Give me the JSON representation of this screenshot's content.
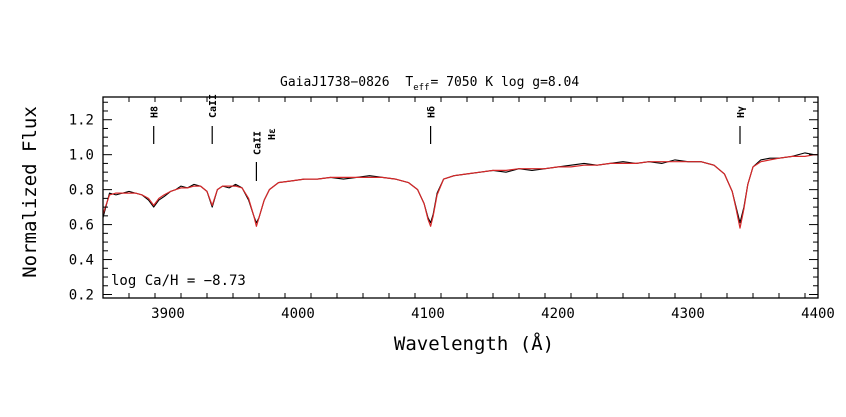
{
  "chart_data": {
    "type": "line",
    "title_parts": {
      "object": "GaiaJ1738−0826",
      "teff_symbol": "T",
      "teff_sub": "eff",
      "teff_rest": "= 7050 K log g=8.04"
    },
    "xlabel": "Wavelength (Å)",
    "ylabel": "Normalized Flux",
    "xlim": [
      3850,
      4400
    ],
    "ylim": [
      0.18,
      1.33
    ],
    "x_ticks_labeled": [
      3900,
      4000,
      4100,
      4200,
      4300,
      4400
    ],
    "y_ticks_labeled": [
      "0.2",
      "0.4",
      "0.6",
      "0.8",
      "1.0",
      "1.2"
    ],
    "annotation": "log Ca/H = −8.73",
    "line_markers": [
      {
        "label": "H8",
        "wavelength": 3889
      },
      {
        "label": "CaII",
        "wavelength": 3934
      },
      {
        "label": "CaII",
        "wavelength": 3968
      },
      {
        "label": "Hε",
        "wavelength": 3970
      },
      {
        "label": "Hδ",
        "wavelength": 4102
      },
      {
        "label": "Hγ",
        "wavelength": 4340
      }
    ],
    "series": [
      {
        "color": "#000000",
        "x": [
          3850,
          3855,
          3860,
          3865,
          3870,
          3875,
          3880,
          3885,
          3889,
          3893,
          3897,
          3902,
          3906,
          3910,
          3915,
          3920,
          3925,
          3930,
          3934,
          3938,
          3942,
          3947,
          3952,
          3957,
          3962,
          3966,
          3968,
          3970,
          3974,
          3978,
          3985,
          3995,
          4005,
          4015,
          4025,
          4035,
          4045,
          4055,
          4065,
          4075,
          4085,
          4092,
          4097,
          4100,
          4102,
          4104,
          4107,
          4112,
          4120,
          4130,
          4140,
          4150,
          4160,
          4170,
          4180,
          4190,
          4200,
          4210,
          4220,
          4230,
          4240,
          4250,
          4260,
          4270,
          4280,
          4290,
          4300,
          4310,
          4320,
          4328,
          4334,
          4337,
          4340,
          4343,
          4346,
          4350,
          4356,
          4363,
          4370,
          4380,
          4390,
          4397,
          4400
        ],
        "y": [
          0.64,
          0.78,
          0.77,
          0.78,
          0.79,
          0.78,
          0.77,
          0.74,
          0.7,
          0.74,
          0.76,
          0.79,
          0.8,
          0.82,
          0.81,
          0.83,
          0.82,
          0.79,
          0.7,
          0.8,
          0.82,
          0.81,
          0.83,
          0.81,
          0.74,
          0.65,
          0.61,
          0.64,
          0.74,
          0.8,
          0.84,
          0.85,
          0.86,
          0.86,
          0.87,
          0.86,
          0.87,
          0.88,
          0.87,
          0.86,
          0.84,
          0.8,
          0.72,
          0.64,
          0.61,
          0.66,
          0.78,
          0.86,
          0.88,
          0.89,
          0.9,
          0.91,
          0.9,
          0.92,
          0.91,
          0.92,
          0.93,
          0.94,
          0.95,
          0.94,
          0.95,
          0.96,
          0.95,
          0.96,
          0.95,
          0.97,
          0.96,
          0.96,
          0.94,
          0.89,
          0.79,
          0.7,
          0.61,
          0.7,
          0.83,
          0.93,
          0.97,
          0.98,
          0.98,
          0.99,
          1.01,
          1.0,
          1.0
        ]
      },
      {
        "color": "#d62728",
        "x": [
          3850,
          3855,
          3860,
          3865,
          3870,
          3875,
          3880,
          3885,
          3889,
          3893,
          3897,
          3902,
          3906,
          3910,
          3915,
          3920,
          3925,
          3930,
          3934,
          3938,
          3942,
          3947,
          3952,
          3957,
          3962,
          3966,
          3968,
          3970,
          3974,
          3978,
          3985,
          3995,
          4005,
          4015,
          4025,
          4035,
          4045,
          4055,
          4065,
          4075,
          4085,
          4092,
          4097,
          4100,
          4102,
          4104,
          4107,
          4112,
          4120,
          4130,
          4140,
          4150,
          4160,
          4170,
          4180,
          4190,
          4200,
          4210,
          4220,
          4230,
          4240,
          4250,
          4260,
          4270,
          4280,
          4290,
          4300,
          4310,
          4320,
          4328,
          4334,
          4337,
          4340,
          4343,
          4346,
          4350,
          4356,
          4363,
          4370,
          4380,
          4390,
          4397,
          4400
        ],
        "y": [
          0.66,
          0.77,
          0.78,
          0.78,
          0.78,
          0.78,
          0.77,
          0.75,
          0.71,
          0.75,
          0.77,
          0.79,
          0.8,
          0.81,
          0.81,
          0.82,
          0.82,
          0.79,
          0.71,
          0.8,
          0.82,
          0.82,
          0.82,
          0.81,
          0.75,
          0.65,
          0.59,
          0.64,
          0.74,
          0.8,
          0.84,
          0.85,
          0.86,
          0.86,
          0.87,
          0.87,
          0.87,
          0.87,
          0.87,
          0.86,
          0.84,
          0.8,
          0.72,
          0.63,
          0.59,
          0.65,
          0.77,
          0.86,
          0.88,
          0.89,
          0.9,
          0.91,
          0.91,
          0.92,
          0.92,
          0.92,
          0.93,
          0.93,
          0.94,
          0.94,
          0.95,
          0.95,
          0.95,
          0.96,
          0.96,
          0.96,
          0.96,
          0.96,
          0.94,
          0.89,
          0.79,
          0.69,
          0.58,
          0.69,
          0.83,
          0.93,
          0.96,
          0.97,
          0.98,
          0.99,
          0.99,
          1.0,
          1.0
        ]
      }
    ]
  }
}
